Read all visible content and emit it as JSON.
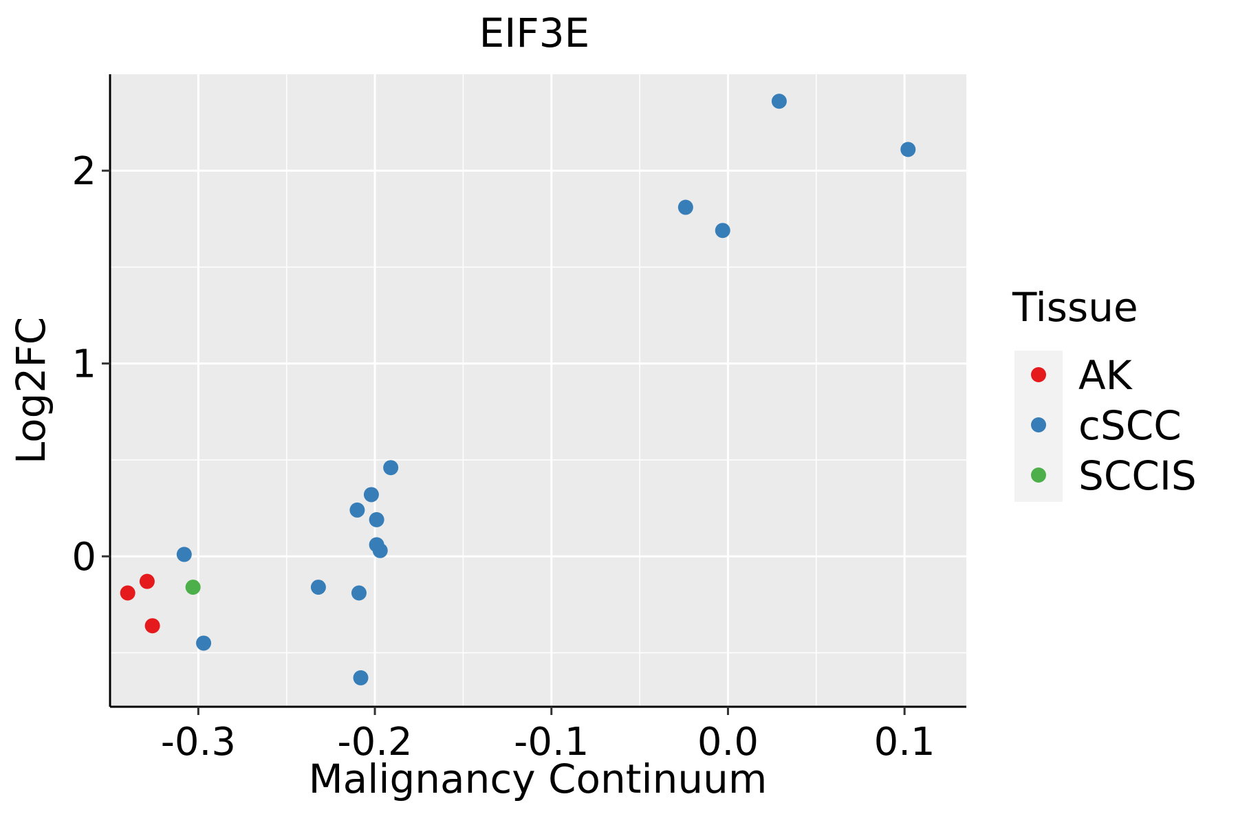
{
  "chart_data": {
    "type": "scatter",
    "title": "EIF3E",
    "xlabel": "Malignancy Continuum",
    "ylabel": "Log2FC",
    "xlim": [
      -0.35,
      0.135
    ],
    "ylim": [
      -0.78,
      2.5
    ],
    "xticks": [
      -0.3,
      -0.2,
      -0.1,
      0.0,
      0.1
    ],
    "xtick_labels": [
      "-0.3",
      "-0.2",
      "-0.1",
      "0.0",
      "0.1"
    ],
    "yticks": [
      0,
      1,
      2
    ],
    "ytick_labels": [
      "0",
      "1",
      "2"
    ],
    "grid": true,
    "legend": {
      "title": "Tissue",
      "placement": "right",
      "entries": [
        {
          "name": "AK",
          "color": "#E41A1C"
        },
        {
          "name": "cSCC",
          "color": "#377EB8"
        },
        {
          "name": "SCCIS",
          "color": "#4DAF4A"
        }
      ]
    },
    "series": [
      {
        "name": "AK",
        "color": "#E41A1C",
        "points": [
          {
            "x": -0.34,
            "y": -0.19
          },
          {
            "x": -0.329,
            "y": -0.13
          },
          {
            "x": -0.326,
            "y": -0.36
          }
        ]
      },
      {
        "name": "cSCC",
        "color": "#377EB8",
        "points": [
          {
            "x": -0.308,
            "y": 0.01
          },
          {
            "x": -0.297,
            "y": -0.45
          },
          {
            "x": -0.232,
            "y": -0.16
          },
          {
            "x": -0.21,
            "y": 0.24
          },
          {
            "x": -0.209,
            "y": -0.19
          },
          {
            "x": -0.208,
            "y": -0.63
          },
          {
            "x": -0.202,
            "y": 0.32
          },
          {
            "x": -0.199,
            "y": 0.19
          },
          {
            "x": -0.199,
            "y": 0.06
          },
          {
            "x": -0.197,
            "y": 0.03
          },
          {
            "x": -0.191,
            "y": 0.46
          },
          {
            "x": -0.024,
            "y": 1.81
          },
          {
            "x": -0.003,
            "y": 1.69
          },
          {
            "x": 0.029,
            "y": 2.36
          },
          {
            "x": 0.102,
            "y": 2.11
          }
        ]
      },
      {
        "name": "SCCIS",
        "color": "#4DAF4A",
        "points": [
          {
            "x": -0.303,
            "y": -0.16
          }
        ]
      }
    ]
  }
}
